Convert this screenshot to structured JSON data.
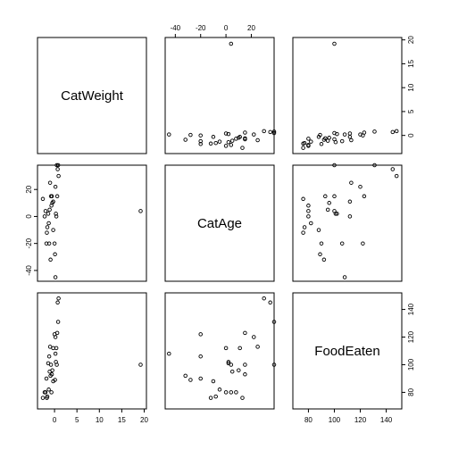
{
  "chart_data": {
    "type": "scatter",
    "title": "",
    "variables": [
      {
        "name": "CatWeight",
        "ticks": [
          0,
          5,
          10,
          15,
          20
        ],
        "lim": [
          -3.8,
          20.5
        ]
      },
      {
        "name": "CatAge",
        "ticks": [
          -40,
          -20,
          0,
          20
        ],
        "lim": [
          -48,
          38
        ]
      },
      {
        "name": "FoodEaten",
        "ticks": [
          80,
          100,
          120,
          140
        ],
        "lim": [
          68,
          152
        ]
      }
    ],
    "observations": [
      {
        "CatWeight": 0.5,
        "CatAge": 38,
        "FoodEaten": 100
      },
      {
        "CatWeight": -1.3,
        "CatAge": -5,
        "FoodEaten": 82
      },
      {
        "CatWeight": -0.6,
        "CatAge": 15,
        "FoodEaten": 93
      },
      {
        "CatWeight": -0.7,
        "CatAge": 8,
        "FoodEaten": 80
      },
      {
        "CatWeight": -1.6,
        "CatAge": -8,
        "FoodEaten": 77
      },
      {
        "CatWeight": 0.2,
        "CatAge": 22,
        "FoodEaten": 120
      },
      {
        "CatWeight": -0.3,
        "CatAge": -10,
        "FoodEaten": 88
      },
      {
        "CatWeight": -1.0,
        "CatAge": 25,
        "FoodEaten": 113
      },
      {
        "CatWeight": 0.8,
        "CatAge": 38,
        "FoodEaten": 131
      },
      {
        "CatWeight": -1.8,
        "CatAge": -20,
        "FoodEaten": 90
      },
      {
        "CatWeight": -2.6,
        "CatAge": 13,
        "FoodEaten": 76
      },
      {
        "CatWeight": -1.2,
        "CatAge": -20,
        "FoodEaten": 106
      },
      {
        "CatWeight": 0.9,
        "CatAge": 30,
        "FoodEaten": 148
      },
      {
        "CatWeight": -0.5,
        "CatAge": 10,
        "FoodEaten": 96
      },
      {
        "CatWeight": 0.1,
        "CatAge": -28,
        "FoodEaten": 89
      },
      {
        "CatWeight": 0.6,
        "CatAge": 15,
        "FoodEaten": 123
      },
      {
        "CatWeight": -0.9,
        "CatAge": -32,
        "FoodEaten": 92
      },
      {
        "CatWeight": 0.3,
        "CatAge": 2,
        "FoodEaten": 102
      },
      {
        "CatWeight": -2.0,
        "CatAge": 4,
        "FoodEaten": 80
      },
      {
        "CatWeight": 0.2,
        "CatAge": -45,
        "FoodEaten": 108
      },
      {
        "CatWeight": -1.4,
        "CatAge": 2,
        "FoodEaten": 101
      },
      {
        "CatWeight": 0.4,
        "CatAge": 0,
        "FoodEaten": 112
      },
      {
        "CatWeight": 0.7,
        "CatAge": 35,
        "FoodEaten": 145
      },
      {
        "CatWeight": -0.8,
        "CatAge": 15,
        "FoodEaten": 100
      },
      {
        "CatWeight": -1.1,
        "CatAge": 5,
        "FoodEaten": 95
      },
      {
        "CatWeight": -1.7,
        "CatAge": -12,
        "FoodEaten": 76
      },
      {
        "CatWeight": 19.2,
        "CatAge": 4,
        "FoodEaten": 100
      },
      {
        "CatWeight": 0.0,
        "CatAge": -20,
        "FoodEaten": 122
      },
      {
        "CatWeight": -0.3,
        "CatAge": 11,
        "FoodEaten": 112
      },
      {
        "CatWeight": -2.2,
        "CatAge": 0,
        "FoodEaten": 80
      }
    ]
  }
}
